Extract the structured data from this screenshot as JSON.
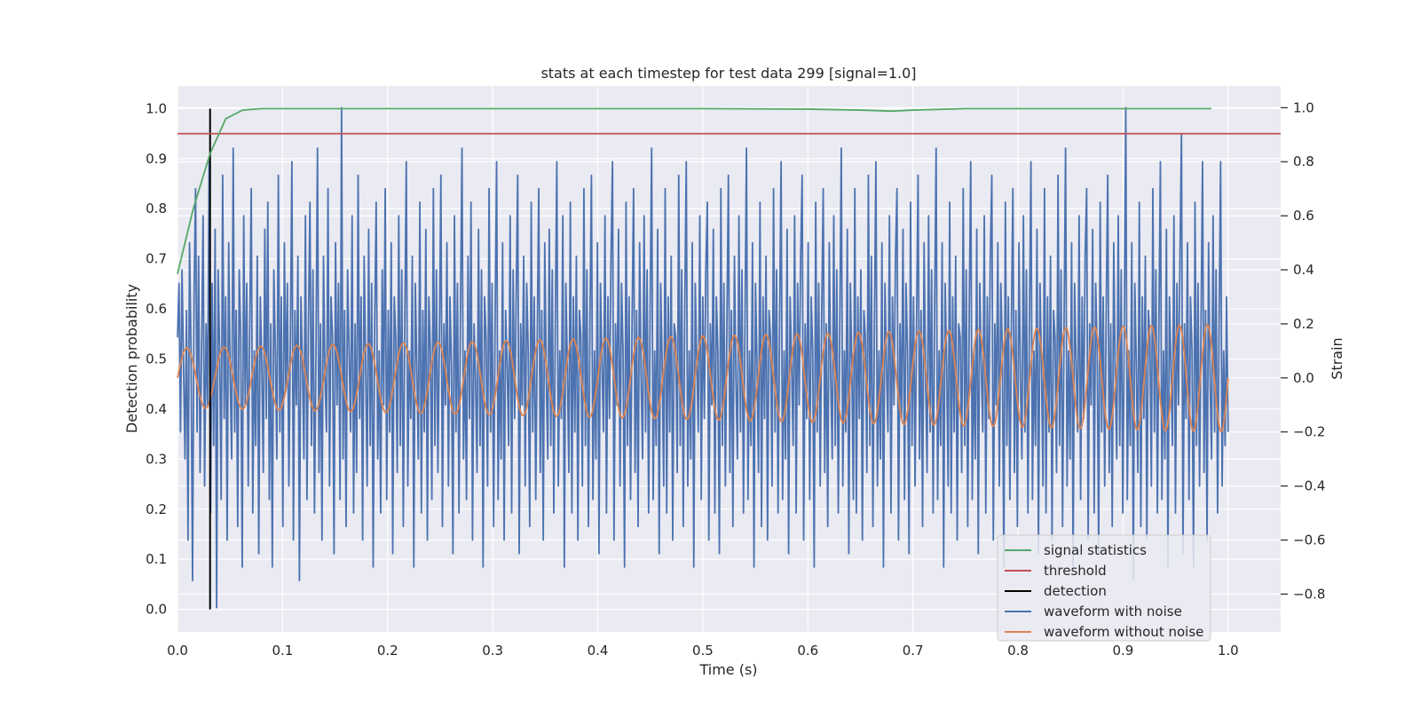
{
  "chart_data": {
    "type": "line",
    "title": "stats at each timestep for test data 299 [signal=1.0]",
    "xlabel": "Time (s)",
    "ylabel_left": "Detection probability",
    "ylabel_right": "Strain",
    "xlim": [
      0.0,
      1.05
    ],
    "ylim_left": [
      -0.045,
      1.045
    ],
    "ylim_right": [
      -0.94,
      1.08
    ],
    "x_ticks": [
      0.0,
      0.1,
      0.2,
      0.3,
      0.4,
      0.5,
      0.6,
      0.7,
      0.8,
      0.9,
      1.0
    ],
    "x_tick_labels": [
      "0.0",
      "0.1",
      "0.2",
      "0.3",
      "0.4",
      "0.5",
      "0.6",
      "0.7",
      "0.8",
      "0.9",
      "1.0"
    ],
    "y_left_ticks": [
      0.0,
      0.1,
      0.2,
      0.3,
      0.4,
      0.5,
      0.6,
      0.7,
      0.8,
      0.9,
      1.0
    ],
    "y_left_tick_labels": [
      "0.0",
      "0.1",
      "0.2",
      "0.3",
      "0.4",
      "0.5",
      "0.6",
      "0.7",
      "0.8",
      "0.9",
      "1.0"
    ],
    "y_right_ticks": [
      -0.8,
      -0.6,
      -0.4,
      -0.2,
      0.0,
      0.2,
      0.4,
      0.6,
      0.8,
      1.0
    ],
    "y_right_tick_labels": [
      "−0.8",
      "−0.6",
      "−0.4",
      "−0.2",
      "0.0",
      "0.2",
      "0.4",
      "0.6",
      "0.8",
      "1.0"
    ],
    "grid": true,
    "legend_position": "bottom-right",
    "legend": [
      {
        "label": "signal statistics",
        "color": "#55a868"
      },
      {
        "label": "threshold",
        "color": "#c44e52"
      },
      {
        "label": "detection",
        "color": "#000000"
      },
      {
        "label": "waveform with noise",
        "color": "#4c72b0"
      },
      {
        "label": "waveform without noise",
        "color": "#dd8452"
      }
    ],
    "series": [
      {
        "name": "signal statistics",
        "axis": "left",
        "color": "#55a868",
        "x": [
          0.0,
          0.015,
          0.031,
          0.046,
          0.062,
          0.08,
          0.1,
          0.2,
          0.3,
          0.4,
          0.5,
          0.6,
          0.65,
          0.68,
          0.7,
          0.75,
          0.8,
          0.9,
          0.984
        ],
        "y": [
          0.67,
          0.8,
          0.91,
          0.98,
          0.997,
          1.0,
          1.0,
          1.0,
          1.0,
          1.0,
          1.0,
          0.999,
          0.997,
          0.995,
          0.997,
          1.0,
          1.0,
          1.0,
          1.0
        ]
      },
      {
        "name": "threshold",
        "axis": "left",
        "color": "#c44e52",
        "x": [
          0.0,
          1.05
        ],
        "y": [
          0.95,
          0.95
        ]
      },
      {
        "name": "detection",
        "axis": "left",
        "color": "#000000",
        "x": [
          0.031,
          0.031
        ],
        "y": [
          0.0,
          1.0
        ]
      },
      {
        "name": "waveform with noise",
        "axis": "right",
        "color": "#4c72b0",
        "x_start": 0.0,
        "x_end": 1.0,
        "y": [
          0.15,
          0.35,
          -0.2,
          0.4,
          0.05,
          -0.3,
          0.25,
          -0.6,
          0.5,
          0.1,
          -0.75,
          0.3,
          0.7,
          -0.2,
          0.45,
          -0.35,
          0.1,
          0.6,
          -0.4,
          0.2,
          -0.1,
          0.8,
          -0.5,
          0.35,
          -0.25,
          0.55,
          -0.85,
          0.4,
          0.1,
          -0.45,
          0.75,
          -0.15,
          0.3,
          -0.6,
          0.5,
          0.0,
          -0.3,
          0.85,
          -0.2,
          0.25,
          -0.55,
          0.4,
          0.15,
          -0.7,
          0.6,
          -0.1,
          0.35,
          -0.4,
          0.2,
          0.7,
          -0.5,
          0.1,
          -0.25,
          0.45,
          -0.65,
          0.3,
          0.05,
          -0.35,
          0.55,
          -0.15,
          0.65,
          -0.45,
          0.2,
          -0.7,
          0.4,
          0.1,
          -0.3,
          0.75,
          -0.2,
          0.3,
          -0.55,
          0.5,
          -0.05,
          0.35,
          -0.4,
          0.15,
          0.8,
          -0.6,
          0.25,
          -0.1,
          0.45,
          -0.75,
          0.3,
          0.05,
          -0.3,
          0.6,
          -0.45,
          0.2,
          0.65,
          -0.25,
          0.4,
          -0.5,
          0.1,
          0.85,
          -0.35,
          0.2,
          -0.6,
          0.45,
          0.0,
          -0.2,
          0.7,
          -0.4,
          0.3,
          0.15,
          -0.65,
          0.5,
          -0.1,
          0.35,
          -0.45,
          1.0,
          -0.3,
          0.25,
          -0.55,
          0.4,
          0.1,
          -0.2,
          0.6,
          -0.5,
          0.2,
          -0.35,
          0.75,
          -0.15,
          0.3,
          -0.6,
          0.45,
          0.05,
          -0.4,
          0.55,
          -0.25,
          0.35,
          -0.7,
          0.2,
          0.65,
          -0.3,
          0.1,
          -0.5,
          0.4,
          -0.1,
          0.7,
          -0.45,
          0.25,
          -0.2,
          0.5,
          -0.65,
          0.3,
          0.15,
          -0.35,
          0.6,
          -0.25,
          0.4,
          -0.55,
          0.2,
          0.8,
          -0.4,
          0.1,
          -0.15,
          0.45,
          -0.7,
          0.35,
          0.05,
          -0.3,
          0.65,
          -0.5,
          0.25,
          -0.2,
          0.55,
          -0.6,
          0.3,
          0.1,
          -0.45,
          0.7,
          -0.25,
          0.4,
          -0.35,
          0.15,
          0.75,
          -0.55,
          0.2,
          -0.1,
          0.5,
          -0.4,
          0.3,
          0.05,
          -0.65,
          0.6,
          -0.2,
          0.35,
          -0.5,
          0.25,
          0.85,
          -0.3,
          0.1,
          -0.45,
          0.45,
          -0.15,
          0.65,
          -0.6,
          0.2,
          0.0,
          -0.35,
          0.55,
          -0.25,
          0.4,
          -0.7,
          0.3,
          0.15,
          -0.4,
          0.7,
          -0.2,
          0.35,
          -0.55,
          0.2,
          0.8,
          -0.45,
          0.1,
          -0.3,
          0.5,
          -0.6,
          0.25,
          0.05,
          -0.25,
          0.6,
          -0.5,
          0.4,
          -0.15,
          0.3,
          0.75,
          -0.65,
          0.2,
          -0.1,
          0.45,
          -0.4,
          0.35,
          0.1,
          -0.55,
          0.65,
          -0.2,
          0.3,
          -0.45,
          0.15,
          0.7,
          -0.35,
          0.25,
          -0.6,
          0.5,
          0.0,
          -0.3,
          0.55,
          -0.25,
          0.4,
          -0.5,
          0.2,
          0.8,
          -0.4,
          0.1,
          -0.15,
          0.6,
          -0.7,
          0.35,
          0.05,
          -0.35,
          0.65,
          -0.5,
          0.3,
          -0.2,
          0.45,
          -0.6,
          0.25,
          0.15,
          -0.4,
          0.7,
          -0.25,
          0.4,
          -0.55,
          0.2,
          0.75,
          -0.45,
          0.1,
          -0.3,
          0.5,
          -0.65,
          0.35,
          0.05,
          -0.2,
          0.6,
          -0.5,
          0.3,
          -0.15,
          0.45,
          0.8,
          -0.6,
          0.2,
          -0.1,
          0.55,
          -0.4,
          0.35,
          0.1,
          -0.7,
          0.65,
          -0.25,
          0.3,
          -0.45,
          0.2,
          0.7,
          -0.35,
          0.25,
          -0.55,
          0.5,
          0.0,
          -0.3,
          0.6,
          -0.2,
          0.4,
          -0.5,
          0.25,
          0.85,
          -0.45,
          0.1,
          -0.25,
          0.55,
          -0.65,
          0.35,
          0.05,
          -0.4,
          0.7,
          -0.5,
          0.3,
          -0.2,
          0.45,
          -0.6,
          0.2,
          0.15,
          -0.35,
          0.75,
          -0.25,
          0.4,
          -0.55,
          0.25,
          0.8,
          -0.4,
          0.1,
          -0.3,
          0.5,
          -0.7,
          0.35,
          0.05,
          -0.2,
          0.6,
          -0.45,
          0.3,
          -0.15,
          0.4,
          0.65,
          -0.6,
          0.2,
          -0.1,
          0.55,
          -0.5,
          0.3,
          0.1,
          -0.65,
          0.7,
          -0.25,
          0.35,
          -0.4,
          0.2,
          0.75,
          -0.35,
          0.25,
          -0.55,
          0.45,
          0.0,
          -0.3,
          0.6,
          -0.2,
          0.4,
          -0.5,
          0.2,
          0.85,
          -0.45,
          0.1,
          -0.25,
          0.5,
          -0.7,
          0.35,
          0.05,
          -0.35,
          0.65,
          -0.55,
          0.3,
          -0.15,
          0.45,
          -0.6,
          0.25,
          0.15,
          -0.4,
          0.7,
          -0.2,
          0.4,
          -0.5,
          0.2,
          0.8,
          -0.45,
          0.1,
          -0.3,
          0.55,
          -0.65,
          0.3,
          0.05,
          -0.25,
          0.6,
          -0.5,
          0.35,
          -0.1,
          0.45,
          0.75,
          -0.6,
          0.2,
          -0.15,
          0.5,
          -0.45,
          0.3,
          0.1,
          -0.7,
          0.65,
          -0.2,
          0.35,
          -0.4,
          0.25,
          0.7,
          -0.35,
          0.2,
          -0.55,
          0.5,
          0.0,
          -0.3,
          0.6,
          -0.25,
          0.4,
          -0.5,
          0.2,
          0.85,
          -0.4,
          0.1,
          -0.2,
          0.55,
          -0.65,
          0.35,
          0.05,
          -0.45,
          0.7,
          -0.5,
          0.3,
          -0.15,
          0.4,
          -0.6,
          0.25,
          0.15,
          -0.35,
          0.75,
          -0.25,
          0.45,
          -0.55,
          0.2,
          0.8,
          -0.4,
          0.1,
          -0.3,
          0.5,
          -0.7,
          0.35,
          0.05,
          -0.2,
          0.6,
          -0.5,
          0.3,
          -0.1,
          0.45,
          0.7,
          -0.6,
          0.2,
          -0.15,
          0.55,
          -0.45,
          0.35,
          0.1,
          -0.65,
          0.65,
          -0.25,
          0.3,
          -0.4,
          0.2,
          0.75,
          -0.3,
          0.25,
          -0.55,
          0.5,
          0.0,
          -0.35,
          0.6,
          -0.2,
          0.4,
          -0.5,
          0.25,
          0.85,
          -0.45,
          0.1,
          -0.25,
          0.5,
          -0.7,
          0.35,
          0.05,
          -0.4,
          0.65,
          -0.5,
          0.3,
          -0.2,
          0.45,
          -0.6,
          0.2,
          0.15,
          -0.35,
          0.7,
          -0.25,
          0.4,
          -0.55,
          0.25,
          0.8,
          -0.45,
          0.1,
          -0.3,
          0.55,
          -0.65,
          0.35,
          0.05,
          -0.2,
          0.6,
          -0.5,
          0.3,
          -0.15,
          0.45,
          0.75,
          -0.6,
          0.2,
          -0.1,
          0.5,
          -0.4,
          0.35,
          0.1,
          -0.7,
          0.65,
          -0.25,
          0.3,
          -0.45,
          0.2,
          0.7,
          -0.35,
          0.25,
          -0.55,
          0.5,
          0.0,
          -0.3,
          0.6,
          -0.2,
          0.4,
          -0.5,
          0.2,
          0.8,
          -0.45,
          0.1,
          -0.25,
          0.55,
          -0.65,
          0.35,
          0.05,
          -0.4,
          0.7,
          -0.5,
          0.3,
          -0.2,
          0.45,
          -0.6,
          0.25,
          0.15,
          -0.35,
          0.75,
          -0.25,
          0.4,
          -0.55,
          0.2,
          0.85,
          -0.4,
          0.1,
          -0.3,
          0.5,
          -0.7,
          0.35,
          0.05,
          -0.2,
          0.6,
          -0.45,
          0.3,
          -0.15,
          0.45,
          0.7,
          -0.6,
          0.2,
          -0.1,
          0.55,
          -0.5,
          0.35,
          0.1,
          -0.65,
          0.65,
          -0.2,
          0.3,
          -0.4,
          0.25,
          0.75,
          -0.35,
          0.2,
          -0.55,
          0.5,
          0.0,
          -0.3,
          0.6,
          -0.25,
          0.4,
          -0.5,
          0.2,
          1.0,
          -0.45,
          0.1,
          -0.25,
          0.5,
          -0.75,
          0.35,
          0.05,
          -0.35,
          0.65,
          -0.55,
          0.3,
          -0.15,
          0.45,
          -0.6,
          0.25,
          0.15,
          -0.4,
          0.7,
          -0.2,
          0.4,
          -0.5,
          0.2,
          0.8,
          -0.45,
          0.1,
          -0.3,
          0.55,
          -0.7,
          0.3,
          0.05,
          -0.25,
          0.6,
          -0.5,
          0.35,
          -0.1,
          0.45,
          0.9,
          -0.65,
          0.2,
          -0.15,
          0.5,
          -0.45,
          0.3,
          0.1,
          -0.7,
          0.65,
          -0.25,
          0.35,
          -0.4,
          0.2,
          0.8,
          -0.35,
          0.25,
          -0.6,
          0.5,
          0.0,
          -0.3,
          0.6,
          -0.2,
          0.4,
          -0.5,
          0.2,
          0.8,
          -0.4,
          0.1,
          -0.25,
          0.3,
          -0.2
        ]
      },
      {
        "name": "waveform without noise",
        "axis": "right",
        "color": "#dd8452",
        "x_start": 0.0,
        "x_end": 1.0,
        "freq_start": 28,
        "freq_end": 38,
        "amp_start": 0.11,
        "amp_end": 0.2
      }
    ]
  }
}
